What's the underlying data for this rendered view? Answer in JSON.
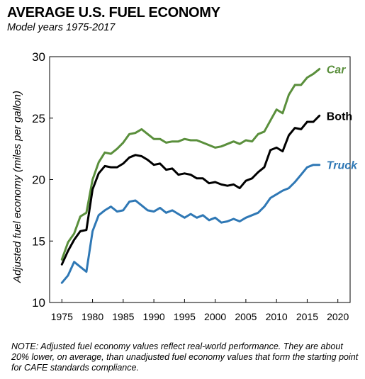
{
  "header": {
    "title": "AVERAGE U.S. FUEL ECONOMY",
    "subtitle": "Model years 1975-2017"
  },
  "footer": {
    "note": "NOTE: Adjusted fuel economy values reflect real-world performance. They are about 20% lower, on average, than unadjusted fuel economy values that form the starting point for CAFE standards compliance."
  },
  "chart_data": {
    "type": "line",
    "title": "AVERAGE U.S. FUEL ECONOMY",
    "subtitle": "Model years 1975-2017",
    "xlabel": "",
    "ylabel": "Adjusted fuel economy (miles per gallon)",
    "xlim": [
      1973,
      2022
    ],
    "ylim": [
      10,
      30
    ],
    "x_ticks": [
      "1975",
      "1980",
      "1985",
      "1990",
      "1995",
      "2000",
      "2005",
      "2010",
      "2015",
      "2020"
    ],
    "y_ticks": [
      "10",
      "15",
      "20",
      "25",
      "30"
    ],
    "grid": false,
    "legend": "inline labels at line ends",
    "x": [
      1975,
      1976,
      1977,
      1978,
      1979,
      1980,
      1981,
      1982,
      1983,
      1984,
      1985,
      1986,
      1987,
      1988,
      1989,
      1990,
      1991,
      1992,
      1993,
      1994,
      1995,
      1996,
      1997,
      1998,
      1999,
      2000,
      2001,
      2002,
      2003,
      2004,
      2005,
      2006,
      2007,
      2008,
      2009,
      2010,
      2011,
      2012,
      2013,
      2014,
      2015,
      2016,
      2017
    ],
    "series": [
      {
        "name": "Car",
        "color": "#5a8f3c",
        "values": [
          13.5,
          14.9,
          15.6,
          17.0,
          17.3,
          20.0,
          21.4,
          22.2,
          22.1,
          22.5,
          23.0,
          23.7,
          23.8,
          24.1,
          23.7,
          23.3,
          23.3,
          23.0,
          23.1,
          23.1,
          23.3,
          23.2,
          23.2,
          23.0,
          22.8,
          22.6,
          22.7,
          22.9,
          23.1,
          22.9,
          23.2,
          23.1,
          23.7,
          23.9,
          24.8,
          25.7,
          25.4,
          26.9,
          27.7,
          27.7,
          28.3,
          28.6,
          29.0
        ]
      },
      {
        "name": "Both",
        "color": "#000000",
        "values": [
          13.1,
          14.2,
          15.1,
          15.8,
          15.9,
          19.2,
          20.5,
          21.1,
          21.0,
          21.0,
          21.3,
          21.8,
          22.0,
          21.9,
          21.6,
          21.2,
          21.3,
          20.8,
          20.9,
          20.4,
          20.5,
          20.4,
          20.1,
          20.1,
          19.7,
          19.8,
          19.6,
          19.5,
          19.6,
          19.3,
          19.9,
          20.1,
          20.6,
          21.0,
          22.4,
          22.6,
          22.3,
          23.6,
          24.2,
          24.1,
          24.7,
          24.7,
          25.2
        ]
      },
      {
        "name": "Truck",
        "color": "#2f78b5",
        "values": [
          11.6,
          12.2,
          13.3,
          12.9,
          12.5,
          15.8,
          17.1,
          17.5,
          17.8,
          17.4,
          17.5,
          18.2,
          18.3,
          17.9,
          17.5,
          17.4,
          17.7,
          17.3,
          17.5,
          17.2,
          16.9,
          17.2,
          16.9,
          17.1,
          16.7,
          16.9,
          16.5,
          16.6,
          16.8,
          16.6,
          16.9,
          17.1,
          17.3,
          17.8,
          18.5,
          18.8,
          19.1,
          19.3,
          19.8,
          20.4,
          21.0,
          21.2,
          21.2
        ]
      }
    ]
  }
}
